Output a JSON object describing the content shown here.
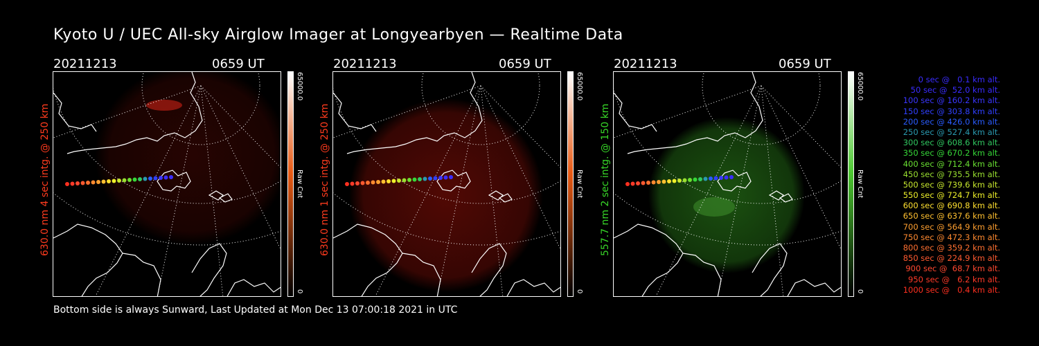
{
  "title": "Kyoto U / UEC All-sky Airglow Imager at Longyearbyen — Realtime Data",
  "footer": "Bottom side is always Sunward, Last Updated at Mon Dec 13 07:00:18 2021 in UTC",
  "panels": [
    {
      "date": "20211213",
      "time": "0659 UT",
      "side_label": "630.0 nm 4 sec intg. @ 250 km",
      "label_color": "#ff3b1e",
      "cbar_max": "65000.0",
      "cbar_unit": "Raw Cnt",
      "cbar_min": "0",
      "glow_color": "#7a0d05",
      "colorbar_top": "#ffffff",
      "colorbar_mid": "#e85a14",
      "colorbar_bottom": "#000000"
    },
    {
      "date": "20211213",
      "time": "0659 UT",
      "side_label": "630.0 nm 1 sec intg. @ 250 km",
      "label_color": "#ff3b1e",
      "cbar_max": "65000.0",
      "cbar_unit": "Raw Cnt",
      "cbar_min": "0",
      "glow_color": "#5a0a05",
      "colorbar_top": "#ffffff",
      "colorbar_mid": "#e85a14",
      "colorbar_bottom": "#000000"
    },
    {
      "date": "20211213",
      "time": "0659 UT",
      "side_label": "557.7 nm 2 sec intg. @ 150 km",
      "label_color": "#38d828",
      "cbar_max": "65000.0",
      "cbar_unit": "Raw Cnt",
      "cbar_min": "0",
      "glow_color": "#1e5a12",
      "colorbar_top": "#ffffff",
      "colorbar_mid": "#4cc830",
      "colorbar_bottom": "#000000"
    }
  ],
  "legend": [
    {
      "text": "0 sec @   0.1 km alt.",
      "color": "#3a2cff"
    },
    {
      "text": "50 sec @  52.0 km alt.",
      "color": "#3a2cff"
    },
    {
      "text": "100 sec @ 160.2 km alt.",
      "color": "#3a36ff"
    },
    {
      "text": "150 sec @ 303.8 km alt.",
      "color": "#3040ff"
    },
    {
      "text": "200 sec @ 426.0 km alt.",
      "color": "#2a5cff"
    },
    {
      "text": "250 sec @ 527.4 km alt.",
      "color": "#2a9ab0"
    },
    {
      "text": "300 sec @ 608.6 km alt.",
      "color": "#30c860"
    },
    {
      "text": "350 sec @ 670.2 km alt.",
      "color": "#36d838"
    },
    {
      "text": "400 sec @ 712.4 km alt.",
      "color": "#6ae032"
    },
    {
      "text": "450 sec @ 735.5 km alt.",
      "color": "#9ae030"
    },
    {
      "text": "500 sec @ 739.6 km alt.",
      "color": "#c8e82e"
    },
    {
      "text": "550 sec @ 724.7 km alt.",
      "color": "#eef02a"
    },
    {
      "text": "600 sec @ 690.8 km alt.",
      "color": "#ffe030"
    },
    {
      "text": "650 sec @ 637.6 km alt.",
      "color": "#ffc030"
    },
    {
      "text": "700 sec @ 564.9 km alt.",
      "color": "#ffa030"
    },
    {
      "text": "750 sec @ 472.3 km alt.",
      "color": "#ff8a30"
    },
    {
      "text": "800 sec @ 359.2 km alt.",
      "color": "#ff7030"
    },
    {
      "text": "850 sec @ 224.9 km alt.",
      "color": "#ff5a30"
    },
    {
      "text": "900 sec @  68.7 km alt.",
      "color": "#ff4830"
    },
    {
      "text": "950 sec @   6.2 km alt.",
      "color": "#ff3a28"
    },
    {
      "text": "1000 sec @   0.4 km alt.",
      "color": "#ff3020"
    }
  ]
}
